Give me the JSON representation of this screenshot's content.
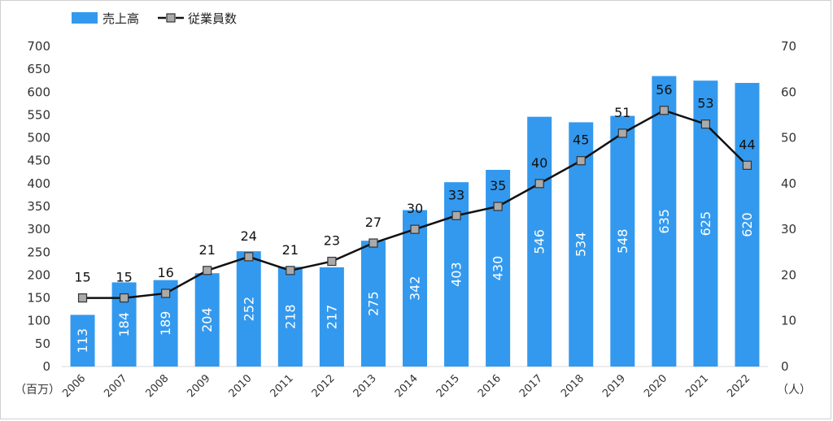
{
  "chart_data": {
    "type": "bar",
    "categories": [
      "2006",
      "2007",
      "2008",
      "2009",
      "2010",
      "2011",
      "2012",
      "2013",
      "2014",
      "2015",
      "2016",
      "2017",
      "2018",
      "2019",
      "2020",
      "2021",
      "2022"
    ],
    "series": [
      {
        "name": "売上高",
        "type": "bar",
        "axis": "left",
        "color": "#3399ee",
        "values": [
          113,
          184,
          189,
          204,
          252,
          218,
          217,
          275,
          342,
          403,
          430,
          546,
          534,
          548,
          635,
          625,
          620
        ]
      },
      {
        "name": "従業員数",
        "type": "line",
        "axis": "right",
        "color": "#111111",
        "marker_color": "#aaaaaa",
        "values": [
          15,
          15,
          16,
          21,
          24,
          21,
          23,
          27,
          30,
          33,
          35,
          40,
          45,
          51,
          56,
          53,
          44
        ]
      }
    ],
    "left_axis": {
      "unit": "（百万）",
      "ylim": [
        0,
        700
      ],
      "ticks": [
        "0",
        "50",
        "100",
        "150",
        "200",
        "250",
        "300",
        "350",
        "400",
        "450",
        "500",
        "550",
        "600",
        "650",
        "700"
      ]
    },
    "right_axis": {
      "unit": "（人）",
      "ylim": [
        0,
        70
      ],
      "ticks": [
        "0",
        "10",
        "20",
        "30",
        "40",
        "50",
        "60",
        "70"
      ]
    },
    "legend_position": "top-left",
    "grid": false
  }
}
